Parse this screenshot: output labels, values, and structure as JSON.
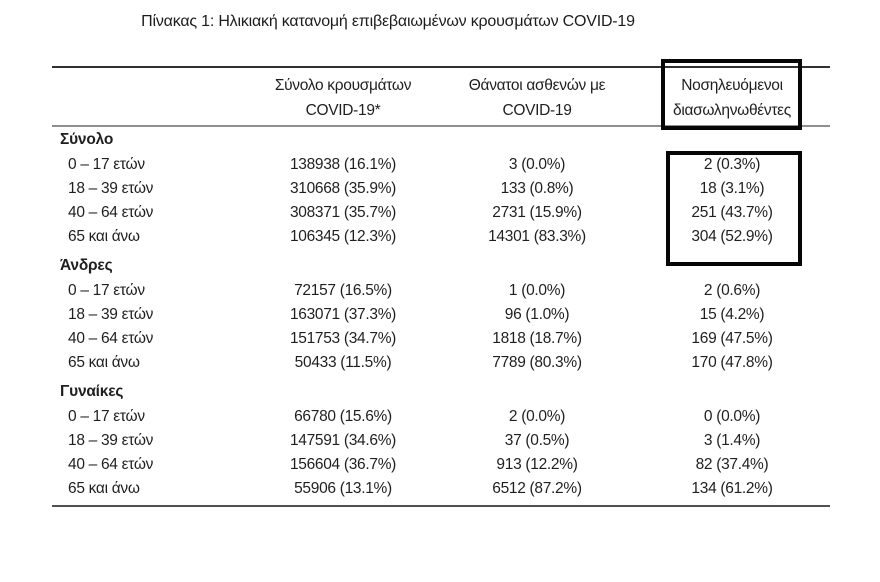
{
  "title": "Πίνακας 1: Ηλικιακή κατανομή επιβεβαιωμένων κρουσμάτων COVID-19",
  "colors": {
    "text": "#1f1f1f",
    "highlight_border": "#060606",
    "rule_top": "#303030",
    "rule_mid": "#8e8e8e",
    "rule_bottom": "#515151"
  },
  "header": {
    "cases": {
      "line1": "Σύνολο κρουσμάτων",
      "line2": "COVID-19*"
    },
    "deaths": {
      "line1": "Θάνατοι ασθενών με",
      "line2": "COVID-19"
    },
    "intubated": {
      "line1": "Νοσηλευόμενοι",
      "line2": "διασωληνωθέντες"
    }
  },
  "sections": [
    {
      "label": "Σύνολο",
      "rows": [
        {
          "age": "0 – 17 ετών",
          "cases": "138938 (16.1%)",
          "deaths": "3 (0.0%)",
          "intubated": "2 (0.3%)"
        },
        {
          "age": "18 – 39 ετών",
          "cases": "310668 (35.9%)",
          "deaths": "133 (0.8%)",
          "intubated": "18 (3.1%)"
        },
        {
          "age": "40 – 64 ετών",
          "cases": "308371 (35.7%)",
          "deaths": "2731 (15.9%)",
          "intubated": "251 (43.7%)"
        },
        {
          "age": "65 και άνω",
          "cases": "106345 (12.3%)",
          "deaths": "14301 (83.3%)",
          "intubated": "304 (52.9%)"
        }
      ]
    },
    {
      "label": "Άνδρες",
      "rows": [
        {
          "age": "0 – 17 ετών",
          "cases": "72157 (16.5%)",
          "deaths": "1 (0.0%)",
          "intubated": "2 (0.6%)"
        },
        {
          "age": "18 – 39 ετών",
          "cases": "163071 (37.3%)",
          "deaths": "96 (1.0%)",
          "intubated": "15 (4.2%)"
        },
        {
          "age": "40 – 64 ετών",
          "cases": "151753 (34.7%)",
          "deaths": "1818 (18.7%)",
          "intubated": "169 (47.5%)"
        },
        {
          "age": "65 και άνω",
          "cases": "50433 (11.5%)",
          "deaths": "7789 (80.3%)",
          "intubated": "170 (47.8%)"
        }
      ]
    },
    {
      "label": "Γυναίκες",
      "rows": [
        {
          "age": "0 – 17 ετών",
          "cases": "66780 (15.6%)",
          "deaths": "2 (0.0%)",
          "intubated": "0 (0.0%)"
        },
        {
          "age": "18 – 39 ετών",
          "cases": "147591 (34.6%)",
          "deaths": "37 (0.5%)",
          "intubated": "3 (1.4%)"
        },
        {
          "age": "40 – 64 ετών",
          "cases": "156604 (36.7%)",
          "deaths": "913 (12.2%)",
          "intubated": "82 (37.4%)"
        },
        {
          "age": "65 και άνω",
          "cases": "55906 (13.1%)",
          "deaths": "6512 (87.2%)",
          "intubated": "134 (61.2%)"
        }
      ]
    }
  ]
}
